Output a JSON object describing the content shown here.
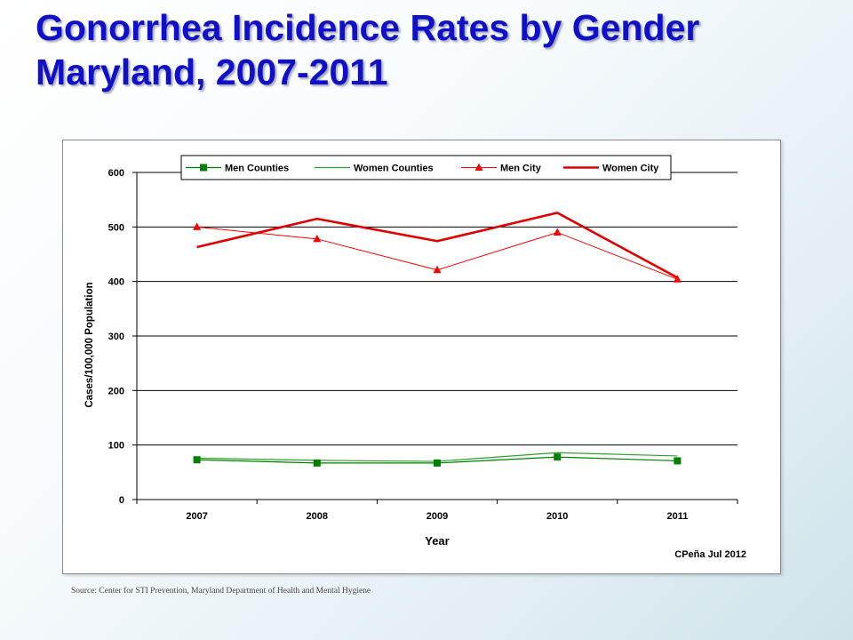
{
  "slide": {
    "title_line1": "Gonorrhea Incidence Rates by Gender",
    "title_line2": "Maryland, 2007-2011",
    "source": "Source: Center for STI Prevention, Maryland Department of Health and Mental Hygiene"
  },
  "chart_data": {
    "type": "line",
    "categories": [
      "2007",
      "2008",
      "2009",
      "2010",
      "2011"
    ],
    "xlabel": "Year",
    "ylabel": "Cases/100,000 Population",
    "ylim": [
      0,
      600
    ],
    "yticks": [
      "0",
      "100",
      "200",
      "300",
      "400",
      "500",
      "600"
    ],
    "grid": true,
    "legend_position": "top",
    "credit": "CPeña Jul 2012",
    "series": [
      {
        "name": "Men Counties",
        "values": [
          73,
          67,
          67,
          78,
          71
        ],
        "color": "#008000",
        "marker": "square",
        "width": 1.2
      },
      {
        "name": "Women Counties",
        "values": [
          76,
          72,
          70,
          86,
          80
        ],
        "color": "#2ca02c",
        "marker": "none",
        "width": 1.2
      },
      {
        "name": "Men City",
        "values": [
          500,
          478,
          421,
          490,
          404
        ],
        "color": "#ff0000",
        "marker": "triangle",
        "width": 1
      },
      {
        "name": "Women City",
        "values": [
          463,
          515,
          474,
          526,
          407
        ],
        "color": "#e00000",
        "marker": "none",
        "width": 2.6
      }
    ]
  }
}
